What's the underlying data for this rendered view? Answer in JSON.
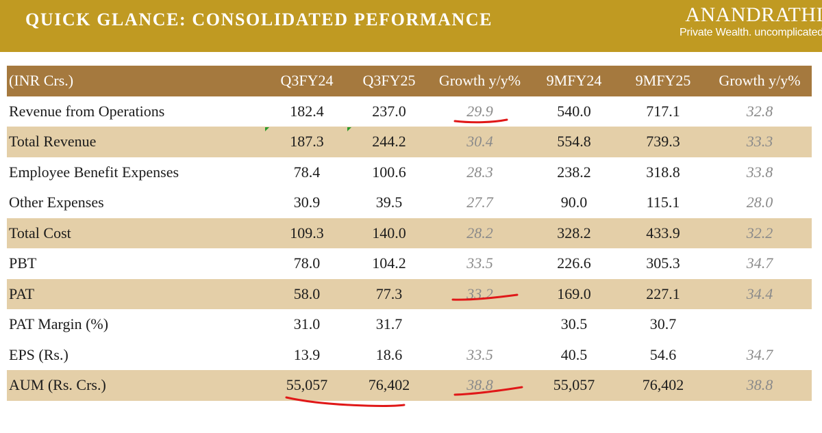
{
  "header": {
    "title": "QUICK GLANCE: CONSOLIDATED PEFORMANCE",
    "brand_name": "ANANDRATHI",
    "brand_tagline": "Private Wealth. uncomplicated"
  },
  "table": {
    "columns": [
      "(INR Crs.)",
      "Q3FY24",
      "Q3FY25",
      "Growth y/y%",
      "9MFY24",
      "9MFY25",
      "Growth y/y%"
    ],
    "rows": [
      {
        "label": "Revenue from Operations",
        "values": [
          "182.4",
          "237.0",
          "29.9",
          "540.0",
          "717.1",
          "32.8"
        ]
      },
      {
        "label": "Total Revenue",
        "values": [
          "187.3",
          "244.2",
          "30.4",
          "554.8",
          "739.3",
          "33.3"
        ]
      },
      {
        "label": "Employee Benefit Expenses",
        "values": [
          "78.4",
          "100.6",
          "28.3",
          "238.2",
          "318.8",
          "33.8"
        ]
      },
      {
        "label": "Other Expenses",
        "values": [
          "30.9",
          "39.5",
          "27.7",
          "90.0",
          "115.1",
          "28.0"
        ]
      },
      {
        "label": "Total Cost",
        "values": [
          "109.3",
          "140.0",
          "28.2",
          "328.2",
          "433.9",
          "32.2"
        ]
      },
      {
        "label": "PBT",
        "values": [
          "78.0",
          "104.2",
          "33.5",
          "226.6",
          "305.3",
          "34.7"
        ]
      },
      {
        "label": "PAT",
        "values": [
          "58.0",
          "77.3",
          "33.2",
          "169.0",
          "227.1",
          "34.4"
        ]
      },
      {
        "label": "PAT Margin (%)",
        "values": [
          "31.0",
          "31.7",
          "",
          "30.5",
          "30.7",
          ""
        ]
      },
      {
        "label": "EPS (Rs.)",
        "values": [
          "13.9",
          "18.6",
          "33.5",
          "40.5",
          "54.6",
          "34.7"
        ]
      },
      {
        "label": "AUM (Rs. Crs.)",
        "values": [
          "55,057",
          "76,402",
          "38.8",
          "55,057",
          "76,402",
          "38.8"
        ]
      }
    ]
  },
  "colors": {
    "header_bg": "#c09a22",
    "table_header_bg": "#a5793e",
    "shaded_row_bg": "#e4cfa8",
    "annotation_red": "#e01818"
  }
}
